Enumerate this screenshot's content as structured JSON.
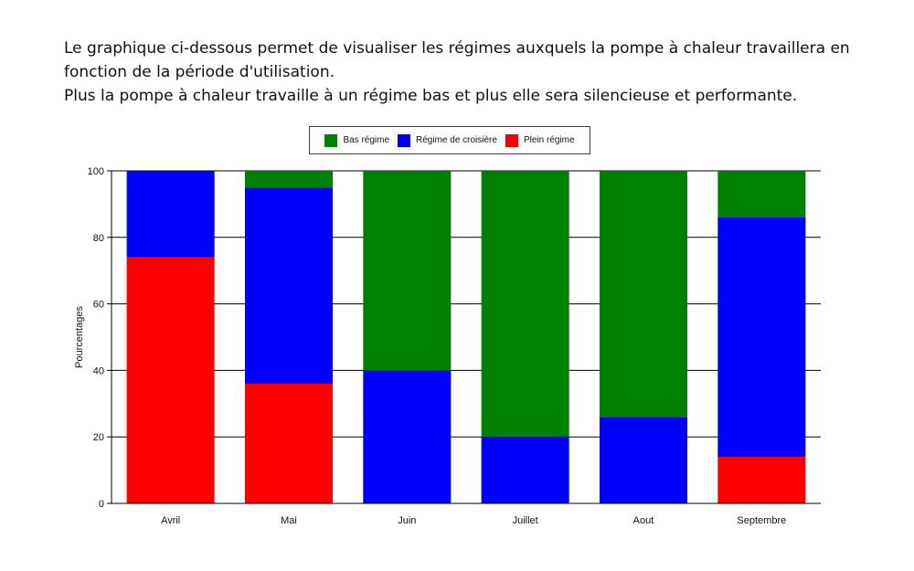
{
  "intro": {
    "line1": "Le graphique ci-dessous permet de visualiser les régimes auxquels la pompe à chaleur travaillera en fonction de la période d'utilisation.",
    "line2": "Plus la pompe à chaleur travaille à un régime bas et plus elle sera silencieuse et performante."
  },
  "chart_data": {
    "type": "bar",
    "stacked": true,
    "categories": [
      "Avril",
      "Mai",
      "Juin",
      "Juillet",
      "Aout",
      "Septembre"
    ],
    "series": [
      {
        "name": "Plein régime",
        "color": "#ff0000",
        "values": [
          74,
          36,
          0,
          0,
          0,
          14
        ]
      },
      {
        "name": "Régime de croisière",
        "color": "#0000ff",
        "values": [
          26,
          59,
          40,
          20,
          26,
          72
        ]
      },
      {
        "name": "Bas régime",
        "color": "#008000",
        "values": [
          0,
          5,
          60,
          80,
          74,
          14
        ]
      }
    ],
    "legend_order": [
      "Bas régime",
      "Régime de croisière",
      "Plein régime"
    ],
    "xlabel": "",
    "ylabel": "Pourcentages",
    "ylim": [
      0,
      100
    ],
    "yticks": [
      0,
      20,
      40,
      60,
      80,
      100
    ],
    "grid": true,
    "legend_position": "top"
  }
}
